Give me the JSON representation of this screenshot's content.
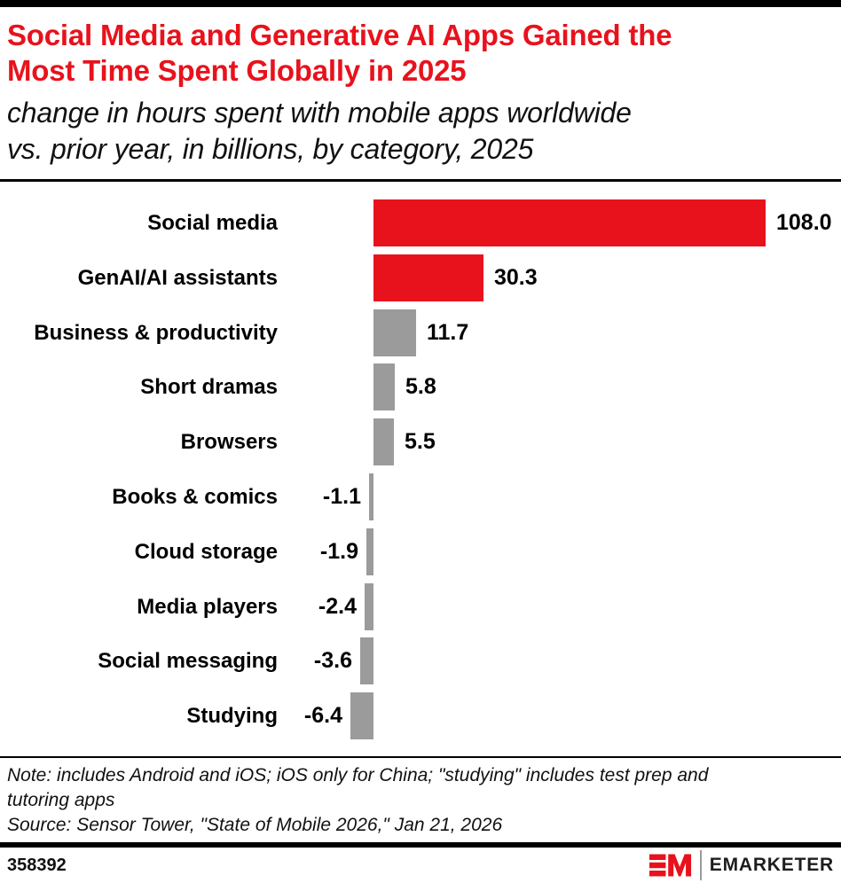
{
  "chart_data": {
    "type": "bar",
    "orientation": "horizontal",
    "title": "Social Media and Generative AI Apps Gained the Most Time Spent Globally in 2025",
    "title_lines": [
      "Social Media and Generative AI Apps Gained the",
      "Most Time Spent Globally in 2025"
    ],
    "subtitle": "change in hours spent with mobile apps worldwide vs. prior year, in billions, by category, 2025",
    "subtitle_lines": [
      "change in hours spent with mobile apps worldwide",
      "vs. prior year, in billions, by category, 2025"
    ],
    "categories": [
      "Social media",
      "GenAI/AI assistants",
      "Business & productivity",
      "Short dramas",
      "Browsers",
      "Books & comics",
      "Cloud storage",
      "Media players",
      "Social messaging",
      "Studying"
    ],
    "values": [
      108.0,
      30.3,
      11.7,
      5.8,
      5.5,
      -1.1,
      -1.9,
      -2.4,
      -3.6,
      -6.4
    ],
    "value_labels": [
      "108.0",
      "30.3",
      "11.7",
      "5.8",
      "5.5",
      "-1.1",
      "-1.9",
      "-2.4",
      "-3.6",
      "-6.4"
    ],
    "bar_colors": [
      "#e8121c",
      "#e8121c",
      "#9b9b9b",
      "#9b9b9b",
      "#9b9b9b",
      "#9b9b9b",
      "#9b9b9b",
      "#9b9b9b",
      "#9b9b9b",
      "#9b9b9b"
    ],
    "highlight_color": "#e8121c",
    "default_color": "#9b9b9b",
    "xlim": [
      -6.4,
      108.0
    ],
    "grid": false,
    "legend": false
  },
  "footer": {
    "note_lines": [
      "Note: includes Android and iOS; iOS only for China; \"studying\" includes test prep and",
      "tutoring apps"
    ],
    "source": "Source: Sensor Tower, \"State of Mobile 2026,\" Jan 21, 2026",
    "chart_id": "358392",
    "brand": "EMARKETER"
  }
}
